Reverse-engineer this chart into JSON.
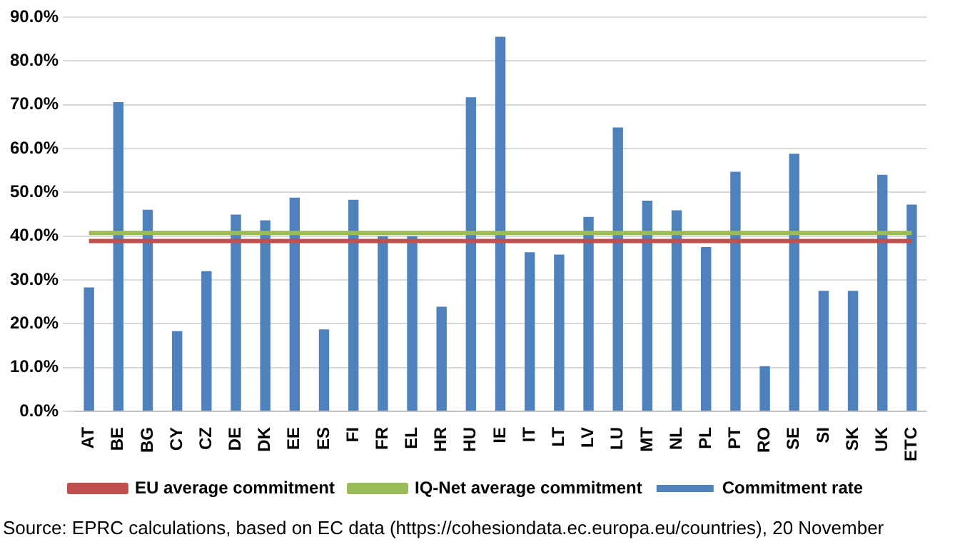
{
  "chart_data": {
    "type": "bar",
    "categories": [
      "AT",
      "BE",
      "BG",
      "CY",
      "CZ",
      "DE",
      "DK",
      "EE",
      "ES",
      "FI",
      "FR",
      "EL",
      "HR",
      "HU",
      "IE",
      "IT",
      "LT",
      "LV",
      "LU",
      "MT",
      "NL",
      "PL",
      "PT",
      "RO",
      "SE",
      "SI",
      "SK",
      "UK",
      "ETC"
    ],
    "series": [
      {
        "name": "Commitment rate",
        "color": "#4f81bd",
        "values": [
          28.3,
          70.6,
          46.0,
          18.3,
          32.0,
          44.9,
          43.6,
          48.8,
          18.7,
          48.3,
          40.0,
          40.0,
          23.9,
          71.7,
          85.5,
          36.3,
          35.8,
          44.4,
          64.8,
          48.1,
          45.9,
          37.5,
          54.7,
          10.3,
          58.8,
          27.5,
          27.5,
          54.0,
          47.2
        ]
      },
      {
        "name": "EU average commitment",
        "type": "line",
        "color": "#c0504d",
        "values": [
          38.9,
          38.9,
          38.9,
          38.9,
          38.9,
          38.9,
          38.9,
          38.9,
          38.9,
          38.9,
          38.9,
          38.9,
          38.9,
          38.9,
          38.9,
          38.9,
          38.9,
          38.9,
          38.9,
          38.9,
          38.9,
          38.9,
          38.9,
          38.9,
          38.9,
          38.9,
          38.9,
          38.9,
          38.9
        ]
      },
      {
        "name": "IQ-Net average commitment",
        "type": "line",
        "color": "#9bbb59",
        "values": [
          40.7,
          40.7,
          40.7,
          40.7,
          40.7,
          40.7,
          40.7,
          40.7,
          40.7,
          40.7,
          40.7,
          40.7,
          40.7,
          40.7,
          40.7,
          40.7,
          40.7,
          40.7,
          40.7,
          40.7,
          40.7,
          40.7,
          40.7,
          40.7,
          40.7,
          40.7,
          40.7,
          40.7,
          40.7
        ]
      }
    ],
    "ylim": [
      0,
      90
    ],
    "yticks": [
      {
        "value": 0,
        "label": "0.0%"
      },
      {
        "value": 10,
        "label": "10.0%"
      },
      {
        "value": 20,
        "label": "20.0%"
      },
      {
        "value": 30,
        "label": "30.0%"
      },
      {
        "value": 40,
        "label": "40.0%"
      },
      {
        "value": 50,
        "label": "50.0%"
      },
      {
        "value": 60,
        "label": "60.0%"
      },
      {
        "value": 70,
        "label": "70.0%"
      },
      {
        "value": 80,
        "label": "80.0%"
      },
      {
        "value": 90,
        "label": "90.0%"
      }
    ],
    "grid": "y",
    "legend": "bottom",
    "marker": "none",
    "annotations": [
      "Source: EPRC calculations, based on EC data (https://cohesiondata.ec.europa.eu/countries), 20 November"
    ]
  }
}
